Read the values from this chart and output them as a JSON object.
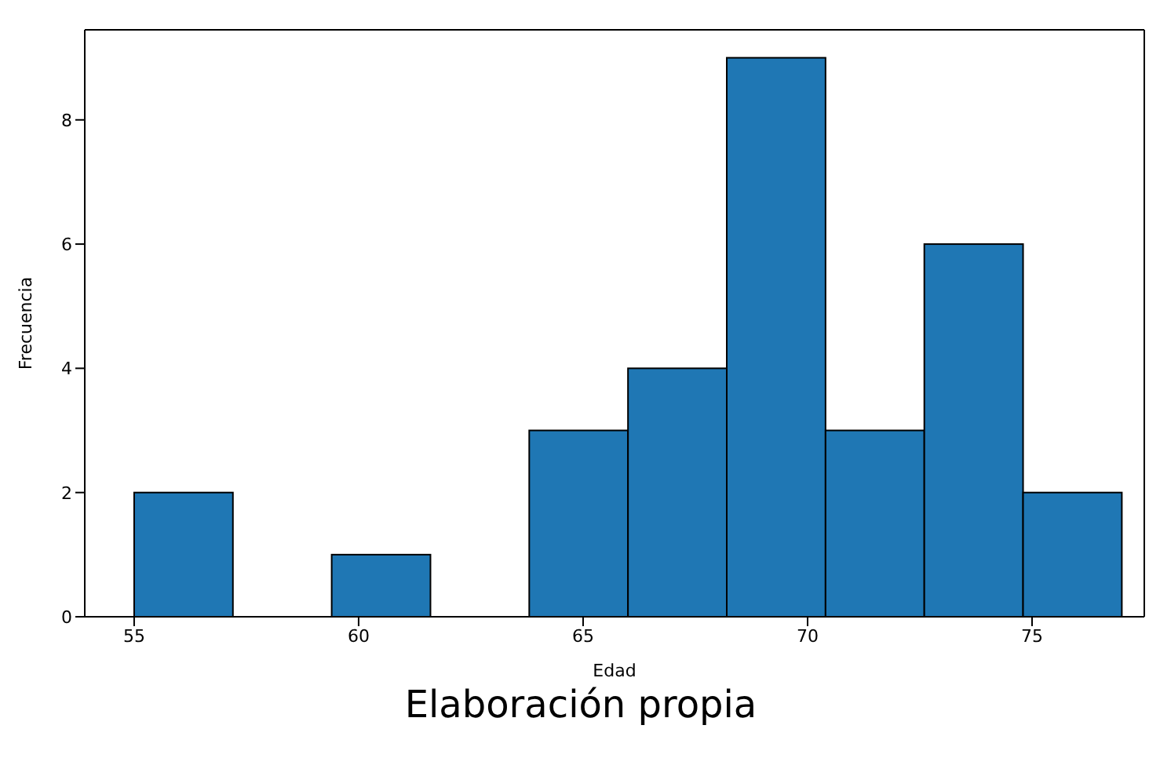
{
  "chart_data": {
    "type": "histogram",
    "xlabel": "Edad",
    "ylabel": "Frecuencia",
    "bins": [
      55,
      57.2,
      59.4,
      61.6,
      63.8,
      66,
      68.2,
      70.4,
      72.6,
      74.8,
      77
    ],
    "values": [
      2,
      0,
      1,
      0,
      3,
      4,
      9,
      3,
      6,
      2
    ],
    "color": "#1f77b4",
    "xlim": [
      53.9,
      77.5
    ],
    "xticks": [
      55,
      60,
      65,
      70,
      75
    ],
    "ylim": [
      0,
      9.45
    ],
    "yticks": [
      0,
      2,
      4,
      6,
      8
    ],
    "grid": false,
    "annotations": [
      "Elaboración propia"
    ]
  }
}
